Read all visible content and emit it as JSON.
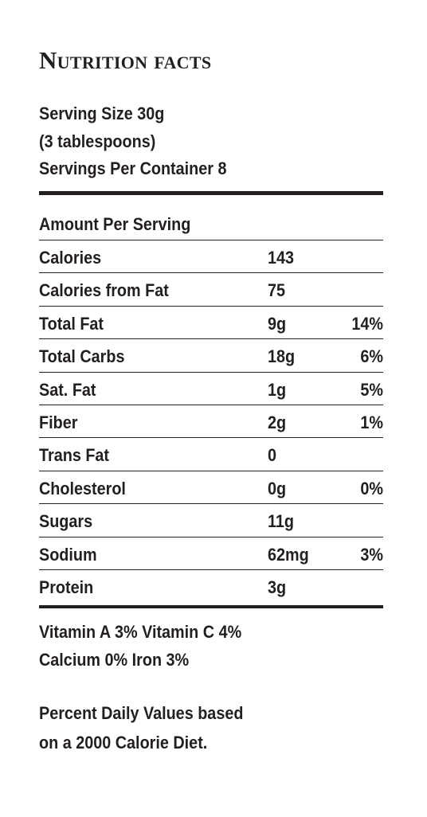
{
  "title": "Nutrition facts",
  "serving": {
    "size": "Serving Size 30g",
    "size_note": "(3 tablespoons)",
    "per_container": "Servings Per Container 8"
  },
  "amount_header": "Amount Per Serving",
  "rows": [
    {
      "name": "Calories",
      "amount": "143",
      "dv": ""
    },
    {
      "name": "Calories from Fat",
      "amount": "75",
      "dv": ""
    },
    {
      "name": "Total Fat",
      "amount": "9g",
      "dv": "14%"
    },
    {
      "name": "Total Carbs",
      "amount": "18g",
      "dv": "6%"
    },
    {
      "name": "Sat. Fat",
      "amount": "1g",
      "dv": "5%"
    },
    {
      "name": "Fiber",
      "amount": "2g",
      "dv": "1%"
    },
    {
      "name": "Trans Fat",
      "amount": "0",
      "dv": ""
    },
    {
      "name": "Cholesterol",
      "amount": "0g",
      "dv": "0%"
    },
    {
      "name": "Sugars",
      "amount": "11g",
      "dv": ""
    },
    {
      "name": "Sodium",
      "amount": "62mg",
      "dv": "3%"
    },
    {
      "name": "Protein",
      "amount": "3g",
      "dv": ""
    }
  ],
  "vitamins": {
    "line1": "Vitamin A  3%  Vitamin C  4%",
    "line2": "Calcium  0%  Iron  3%"
  },
  "footnote": {
    "line1": "Percent Daily Values based",
    "line2": "on a 2000 Calorie Diet."
  },
  "colors": {
    "text": "#231f20",
    "background": "#ffffff"
  }
}
